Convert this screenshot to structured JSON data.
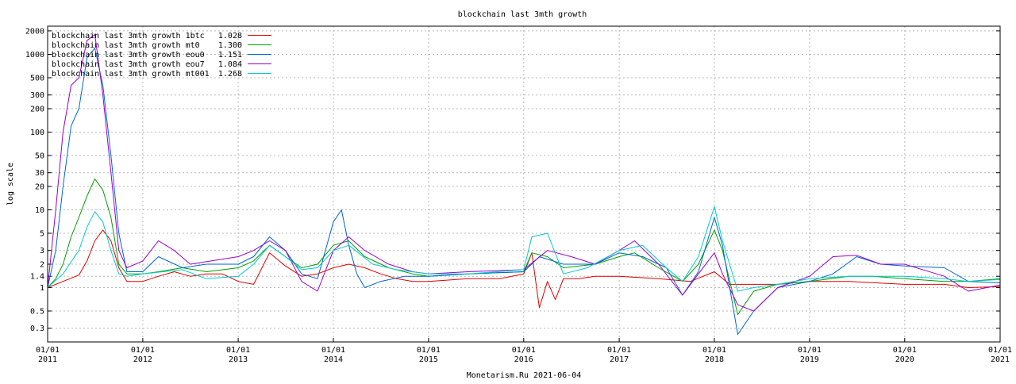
{
  "chart_data": {
    "type": "line",
    "title": "blockchain last 3mth growth",
    "ylabel": "log scale",
    "xlabel": "",
    "footer": "Monetarism.Ru 2021-06-04",
    "y_scale": "log",
    "ylim": [
      0.2,
      2300
    ],
    "xlim": [
      "2011-01-01",
      "2021-01-01"
    ],
    "grid": true,
    "legend_position": "top-left",
    "y_ticks": [
      0.3,
      0.5,
      1,
      1.4,
      2,
      3,
      5,
      10,
      20,
      30,
      50,
      100,
      200,
      300,
      500,
      1000,
      2000
    ],
    "x_ticks": [
      {
        "date": "2011-01-01",
        "label1": "01/01",
        "label2": "2011"
      },
      {
        "date": "2012-01-01",
        "label1": "01/01",
        "label2": "2012"
      },
      {
        "date": "2013-01-01",
        "label1": "01/01",
        "label2": "2013"
      },
      {
        "date": "2014-01-01",
        "label1": "01/01",
        "label2": "2014"
      },
      {
        "date": "2015-01-01",
        "label1": "01/01",
        "label2": "2015"
      },
      {
        "date": "2016-01-01",
        "label1": "01/01",
        "label2": "2016"
      },
      {
        "date": "2017-01-01",
        "label1": "01/01",
        "label2": "2017"
      },
      {
        "date": "2018-01-01",
        "label1": "01/01",
        "label2": "2018"
      },
      {
        "date": "2019-01-01",
        "label1": "01/01",
        "label2": "2019"
      },
      {
        "date": "2020-01-01",
        "label1": "01/01",
        "label2": "2020"
      },
      {
        "date": "2021-01-01",
        "label1": "01/01",
        "label2": "2021"
      }
    ],
    "series": [
      {
        "name": "blockchain last 3mth growth 1btc",
        "last_value": "1.028",
        "color": "#e00000",
        "points": [
          [
            "2011-01-01",
            1.0
          ],
          [
            "2011-03-01",
            1.2
          ],
          [
            "2011-05-01",
            1.45
          ],
          [
            "2011-06-01",
            2.2
          ],
          [
            "2011-07-01",
            4.0
          ],
          [
            "2011-08-01",
            5.5
          ],
          [
            "2011-09-01",
            4.0
          ],
          [
            "2011-10-01",
            1.8
          ],
          [
            "2011-11-01",
            1.2
          ],
          [
            "2012-01-01",
            1.2
          ],
          [
            "2012-03-01",
            1.4
          ],
          [
            "2012-05-01",
            1.6
          ],
          [
            "2012-07-01",
            1.4
          ],
          [
            "2012-09-01",
            1.5
          ],
          [
            "2012-11-01",
            1.5
          ],
          [
            "2013-01-01",
            1.2
          ],
          [
            "2013-03-01",
            1.1
          ],
          [
            "2013-05-01",
            2.8
          ],
          [
            "2013-07-01",
            1.9
          ],
          [
            "2013-09-01",
            1.4
          ],
          [
            "2013-11-01",
            1.5
          ],
          [
            "2014-01-01",
            1.8
          ],
          [
            "2014-03-01",
            2.0
          ],
          [
            "2014-05-01",
            1.8
          ],
          [
            "2014-07-01",
            1.5
          ],
          [
            "2014-09-01",
            1.3
          ],
          [
            "2014-11-01",
            1.2
          ],
          [
            "2015-01-01",
            1.2
          ],
          [
            "2015-06-01",
            1.3
          ],
          [
            "2015-10-01",
            1.3
          ],
          [
            "2016-01-01",
            1.5
          ],
          [
            "2016-02-01",
            2.8
          ],
          [
            "2016-03-01",
            0.55
          ],
          [
            "2016-04-01",
            1.2
          ],
          [
            "2016-05-01",
            0.7
          ],
          [
            "2016-06-01",
            1.3
          ],
          [
            "2016-08-01",
            1.3
          ],
          [
            "2016-10-01",
            1.4
          ],
          [
            "2017-01-01",
            1.4
          ],
          [
            "2017-06-01",
            1.3
          ],
          [
            "2017-10-01",
            1.2
          ],
          [
            "2018-01-01",
            1.6
          ],
          [
            "2018-03-01",
            1.1
          ],
          [
            "2018-06-01",
            1.1
          ],
          [
            "2018-09-01",
            1.1
          ],
          [
            "2019-01-01",
            1.2
          ],
          [
            "2019-06-01",
            1.2
          ],
          [
            "2020-01-01",
            1.1
          ],
          [
            "2020-06-01",
            1.1
          ],
          [
            "2020-09-01",
            1.0
          ],
          [
            "2021-01-01",
            1.03
          ]
        ]
      },
      {
        "name": "blockchain last 3mth growth mt0",
        "last_value": "1.300",
        "color": "#00a000",
        "points": [
          [
            "2011-01-01",
            1.0
          ],
          [
            "2011-02-01",
            1.3
          ],
          [
            "2011-03-01",
            2.0
          ],
          [
            "2011-04-01",
            4.5
          ],
          [
            "2011-05-01",
            8.0
          ],
          [
            "2011-06-01",
            15.0
          ],
          [
            "2011-07-01",
            25.0
          ],
          [
            "2011-08-01",
            18.0
          ],
          [
            "2011-09-01",
            8.0
          ],
          [
            "2011-10-01",
            2.0
          ],
          [
            "2011-11-01",
            1.5
          ],
          [
            "2012-01-01",
            1.5
          ],
          [
            "2012-03-01",
            1.6
          ],
          [
            "2012-06-01",
            1.8
          ],
          [
            "2012-09-01",
            1.6
          ],
          [
            "2013-01-01",
            1.8
          ],
          [
            "2013-03-01",
            2.2
          ],
          [
            "2013-05-01",
            3.5
          ],
          [
            "2013-07-01",
            2.5
          ],
          [
            "2013-09-01",
            1.8
          ],
          [
            "2013-11-01",
            2.0
          ],
          [
            "2014-01-01",
            3.5
          ],
          [
            "2014-03-01",
            4.0
          ],
          [
            "2014-05-01",
            2.5
          ],
          [
            "2014-08-01",
            1.8
          ],
          [
            "2014-11-01",
            1.5
          ],
          [
            "2015-01-01",
            1.4
          ],
          [
            "2015-06-01",
            1.5
          ],
          [
            "2016-01-01",
            1.6
          ],
          [
            "2016-02-01",
            2.8
          ],
          [
            "2016-04-01",
            2.5
          ],
          [
            "2016-06-01",
            1.8
          ],
          [
            "2016-10-01",
            2.0
          ],
          [
            "2017-01-01",
            2.5
          ],
          [
            "2017-03-01",
            2.8
          ],
          [
            "2017-06-01",
            1.8
          ],
          [
            "2017-09-01",
            1.2
          ],
          [
            "2017-11-01",
            2.0
          ],
          [
            "2018-01-01",
            5.5
          ],
          [
            "2018-02-01",
            3.0
          ],
          [
            "2018-04-01",
            0.45
          ],
          [
            "2018-06-01",
            0.9
          ],
          [
            "2018-09-01",
            1.1
          ],
          [
            "2019-01-01",
            1.2
          ],
          [
            "2019-06-01",
            1.4
          ],
          [
            "2019-09-01",
            1.4
          ],
          [
            "2020-01-01",
            1.3
          ],
          [
            "2020-06-01",
            1.2
          ],
          [
            "2020-09-01",
            1.2
          ],
          [
            "2021-01-01",
            1.3
          ]
        ]
      },
      {
        "name": "blockchain last 3mth growth eou0",
        "last_value": "1.151",
        "color": "#0066cc",
        "points": [
          [
            "2011-01-01",
            1.0
          ],
          [
            "2011-02-01",
            3.0
          ],
          [
            "2011-03-01",
            20.0
          ],
          [
            "2011-04-01",
            120.0
          ],
          [
            "2011-05-01",
            200.0
          ],
          [
            "2011-06-01",
            900.0
          ],
          [
            "2011-07-01",
            1200.0
          ],
          [
            "2011-08-01",
            400.0
          ],
          [
            "2011-09-01",
            50.0
          ],
          [
            "2011-10-01",
            5.0
          ],
          [
            "2011-11-01",
            1.6
          ],
          [
            "2012-01-01",
            1.6
          ],
          [
            "2012-03-01",
            2.5
          ],
          [
            "2012-06-01",
            1.8
          ],
          [
            "2012-09-01",
            2.0
          ],
          [
            "2013-01-01",
            2.0
          ],
          [
            "2013-03-01",
            2.5
          ],
          [
            "2013-05-01",
            4.5
          ],
          [
            "2013-07-01",
            3.0
          ],
          [
            "2013-09-01",
            1.5
          ],
          [
            "2013-11-01",
            1.3
          ],
          [
            "2014-01-01",
            7.0
          ],
          [
            "2014-02-01",
            10.0
          ],
          [
            "2014-03-01",
            3.5
          ],
          [
            "2014-04-01",
            1.5
          ],
          [
            "2014-05-01",
            1.0
          ],
          [
            "2014-07-01",
            1.2
          ],
          [
            "2014-10-01",
            1.4
          ],
          [
            "2015-01-01",
            1.4
          ],
          [
            "2015-06-01",
            1.5
          ],
          [
            "2016-01-01",
            1.6
          ],
          [
            "2016-03-01",
            2.5
          ],
          [
            "2016-06-01",
            2.0
          ],
          [
            "2016-10-01",
            2.0
          ],
          [
            "2017-01-01",
            2.8
          ],
          [
            "2017-04-01",
            2.5
          ],
          [
            "2017-07-01",
            1.8
          ],
          [
            "2017-09-01",
            0.8
          ],
          [
            "2017-11-01",
            1.6
          ],
          [
            "2018-01-01",
            8.0
          ],
          [
            "2018-02-01",
            3.5
          ],
          [
            "2018-03-01",
            1.0
          ],
          [
            "2018-04-01",
            0.25
          ],
          [
            "2018-06-01",
            0.5
          ],
          [
            "2018-09-01",
            1.0
          ],
          [
            "2019-01-01",
            1.2
          ],
          [
            "2019-04-01",
            1.5
          ],
          [
            "2019-07-01",
            2.5
          ],
          [
            "2019-10-01",
            2.0
          ],
          [
            "2020-01-01",
            1.9
          ],
          [
            "2020-06-01",
            1.8
          ],
          [
            "2020-09-01",
            1.2
          ],
          [
            "2021-01-01",
            1.15
          ]
        ]
      },
      {
        "name": "blockchain last 3mth growth eou7",
        "last_value": "1.084",
        "color": "#9900cc",
        "points": [
          [
            "2011-01-01",
            1.0
          ],
          [
            "2011-02-01",
            10.0
          ],
          [
            "2011-03-01",
            100.0
          ],
          [
            "2011-04-01",
            400.0
          ],
          [
            "2011-05-01",
            500.0
          ],
          [
            "2011-06-01",
            1500.0
          ],
          [
            "2011-07-01",
            1800.0
          ],
          [
            "2011-08-01",
            300.0
          ],
          [
            "2011-09-01",
            30.0
          ],
          [
            "2011-10-01",
            3.0
          ],
          [
            "2011-11-01",
            1.8
          ],
          [
            "2012-01-01",
            2.2
          ],
          [
            "2012-03-01",
            4.0
          ],
          [
            "2012-05-01",
            3.0
          ],
          [
            "2012-07-01",
            2.0
          ],
          [
            "2013-01-01",
            2.5
          ],
          [
            "2013-03-01",
            3.0
          ],
          [
            "2013-05-01",
            4.0
          ],
          [
            "2013-07-01",
            3.0
          ],
          [
            "2013-09-01",
            1.2
          ],
          [
            "2013-11-01",
            0.9
          ],
          [
            "2014-01-01",
            3.0
          ],
          [
            "2014-03-01",
            4.5
          ],
          [
            "2014-05-01",
            3.0
          ],
          [
            "2014-08-01",
            2.0
          ],
          [
            "2014-11-01",
            1.6
          ],
          [
            "2015-01-01",
            1.5
          ],
          [
            "2015-06-01",
            1.6
          ],
          [
            "2016-01-01",
            1.7
          ],
          [
            "2016-04-01",
            3.0
          ],
          [
            "2016-07-01",
            2.5
          ],
          [
            "2016-10-01",
            2.0
          ],
          [
            "2017-01-01",
            3.0
          ],
          [
            "2017-03-01",
            4.0
          ],
          [
            "2017-06-01",
            2.0
          ],
          [
            "2017-09-01",
            0.8
          ],
          [
            "2017-11-01",
            1.5
          ],
          [
            "2018-01-01",
            2.8
          ],
          [
            "2018-02-01",
            1.5
          ],
          [
            "2018-04-01",
            0.6
          ],
          [
            "2018-06-01",
            0.5
          ],
          [
            "2018-09-01",
            1.0
          ],
          [
            "2019-01-01",
            1.4
          ],
          [
            "2019-04-01",
            2.5
          ],
          [
            "2019-07-01",
            2.6
          ],
          [
            "2019-10-01",
            2.0
          ],
          [
            "2020-01-01",
            2.0
          ],
          [
            "2020-06-01",
            1.4
          ],
          [
            "2020-09-01",
            0.9
          ],
          [
            "2021-01-01",
            1.08
          ]
        ]
      },
      {
        "name": "blockchain last 3mth growth mt001",
        "last_value": "1.268",
        "color": "#00cccc",
        "points": [
          [
            "2011-01-01",
            1.0
          ],
          [
            "2011-03-01",
            1.5
          ],
          [
            "2011-05-01",
            3.0
          ],
          [
            "2011-06-01",
            6.0
          ],
          [
            "2011-07-01",
            9.5
          ],
          [
            "2011-08-01",
            7.0
          ],
          [
            "2011-09-01",
            3.0
          ],
          [
            "2011-10-01",
            1.5
          ],
          [
            "2011-11-01",
            1.4
          ],
          [
            "2012-01-01",
            1.5
          ],
          [
            "2012-06-01",
            1.7
          ],
          [
            "2012-09-01",
            1.3
          ],
          [
            "2013-01-01",
            1.4
          ],
          [
            "2013-03-01",
            2.0
          ],
          [
            "2013-05-01",
            3.5
          ],
          [
            "2013-07-01",
            2.5
          ],
          [
            "2013-09-01",
            1.7
          ],
          [
            "2013-11-01",
            1.8
          ],
          [
            "2014-01-01",
            3.0
          ],
          [
            "2014-03-01",
            3.5
          ],
          [
            "2014-06-01",
            2.0
          ],
          [
            "2014-09-01",
            1.7
          ],
          [
            "2015-01-01",
            1.5
          ],
          [
            "2015-06-01",
            1.5
          ],
          [
            "2016-01-01",
            1.7
          ],
          [
            "2016-02-01",
            4.5
          ],
          [
            "2016-04-01",
            5.0
          ],
          [
            "2016-06-01",
            1.5
          ],
          [
            "2016-09-01",
            1.8
          ],
          [
            "2017-01-01",
            3.0
          ],
          [
            "2017-04-01",
            3.5
          ],
          [
            "2017-07-01",
            1.8
          ],
          [
            "2017-09-01",
            1.2
          ],
          [
            "2017-11-01",
            2.5
          ],
          [
            "2018-01-01",
            11.0
          ],
          [
            "2018-02-01",
            4.0
          ],
          [
            "2018-04-01",
            0.9
          ],
          [
            "2018-06-01",
            1.0
          ],
          [
            "2018-09-01",
            1.1
          ],
          [
            "2019-01-01",
            1.3
          ],
          [
            "2019-06-01",
            1.4
          ],
          [
            "2020-01-01",
            1.4
          ],
          [
            "2020-06-01",
            1.3
          ],
          [
            "2020-09-01",
            1.2
          ],
          [
            "2021-01-01",
            1.27
          ]
        ]
      }
    ]
  }
}
